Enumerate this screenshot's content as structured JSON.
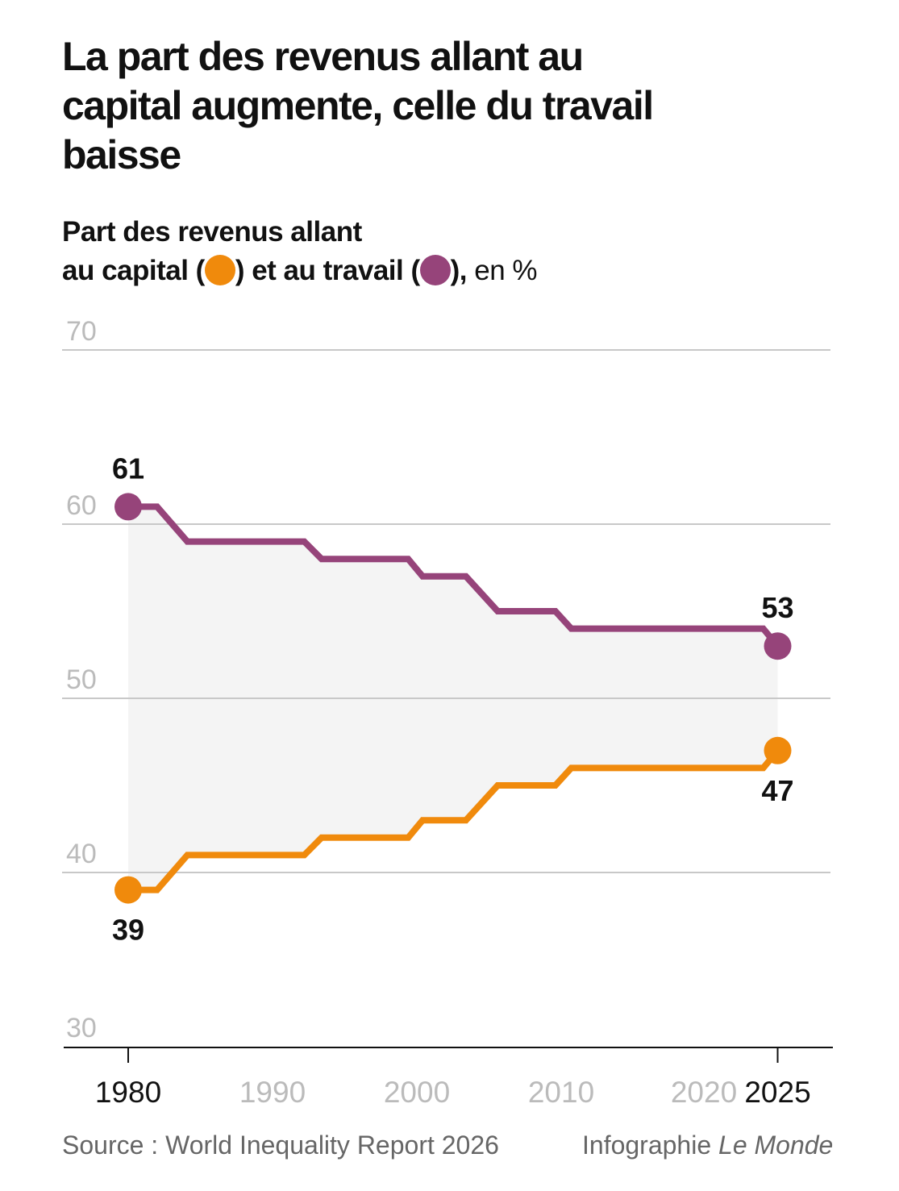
{
  "title": "La part des revenus allant au capital augmente, celle du travail baisse",
  "subtitle": {
    "line1": "Part des revenus allant",
    "line2a": "au capital (",
    "line2b": ") et au travail (",
    "line2c": "),",
    "unit": " en %"
  },
  "source": "Source : World Inequality Report 2026",
  "credit_prefix": "Infographie ",
  "credit_brand": "Le Monde",
  "colors": {
    "capital": "#f08a0c",
    "travail": "#96447a",
    "band": "#f4f4f4"
  },
  "chart_data": {
    "type": "line",
    "ylim": [
      30,
      70
    ],
    "yticks": [
      {
        "v": 30,
        "label": "30"
      },
      {
        "v": 40,
        "label": "40"
      },
      {
        "v": 50,
        "label": "50"
      },
      {
        "v": 60,
        "label": "60"
      },
      {
        "v": 70,
        "label": "70"
      }
    ],
    "xlim": [
      1980,
      2025
    ],
    "xticks": [
      {
        "v": 1980,
        "label": "1980",
        "strong": true
      },
      {
        "v": 1990,
        "label": "1990"
      },
      {
        "v": 2000,
        "label": "2000"
      },
      {
        "v": 2010,
        "label": "2010"
      },
      {
        "v": 2020,
        "label": "2020"
      },
      {
        "v": 2025,
        "label": "2025",
        "strong": true
      }
    ],
    "series": [
      {
        "name": "travail",
        "color": "#96447a",
        "x": [
          1980,
          1982,
          1984.1,
          1992.2,
          1993.4,
          1999.4,
          2000.4,
          2003.4,
          2005.6,
          2009.6,
          2010.7,
          2024,
          2025
        ],
        "y": [
          61,
          61,
          59,
          59,
          58,
          58,
          57,
          57,
          55,
          55,
          54,
          54,
          53
        ],
        "start_label": "61",
        "end_label": "53"
      },
      {
        "name": "capital",
        "color": "#f08a0c",
        "x": [
          1980,
          1982,
          1984.1,
          1992.2,
          1993.4,
          1999.4,
          2000.4,
          2003.4,
          2005.6,
          2009.6,
          2010.7,
          2024,
          2025
        ],
        "y": [
          39,
          39,
          41,
          41,
          42,
          42,
          43,
          43,
          45,
          45,
          46,
          46,
          47
        ],
        "start_label": "39",
        "end_label": "47"
      }
    ]
  }
}
